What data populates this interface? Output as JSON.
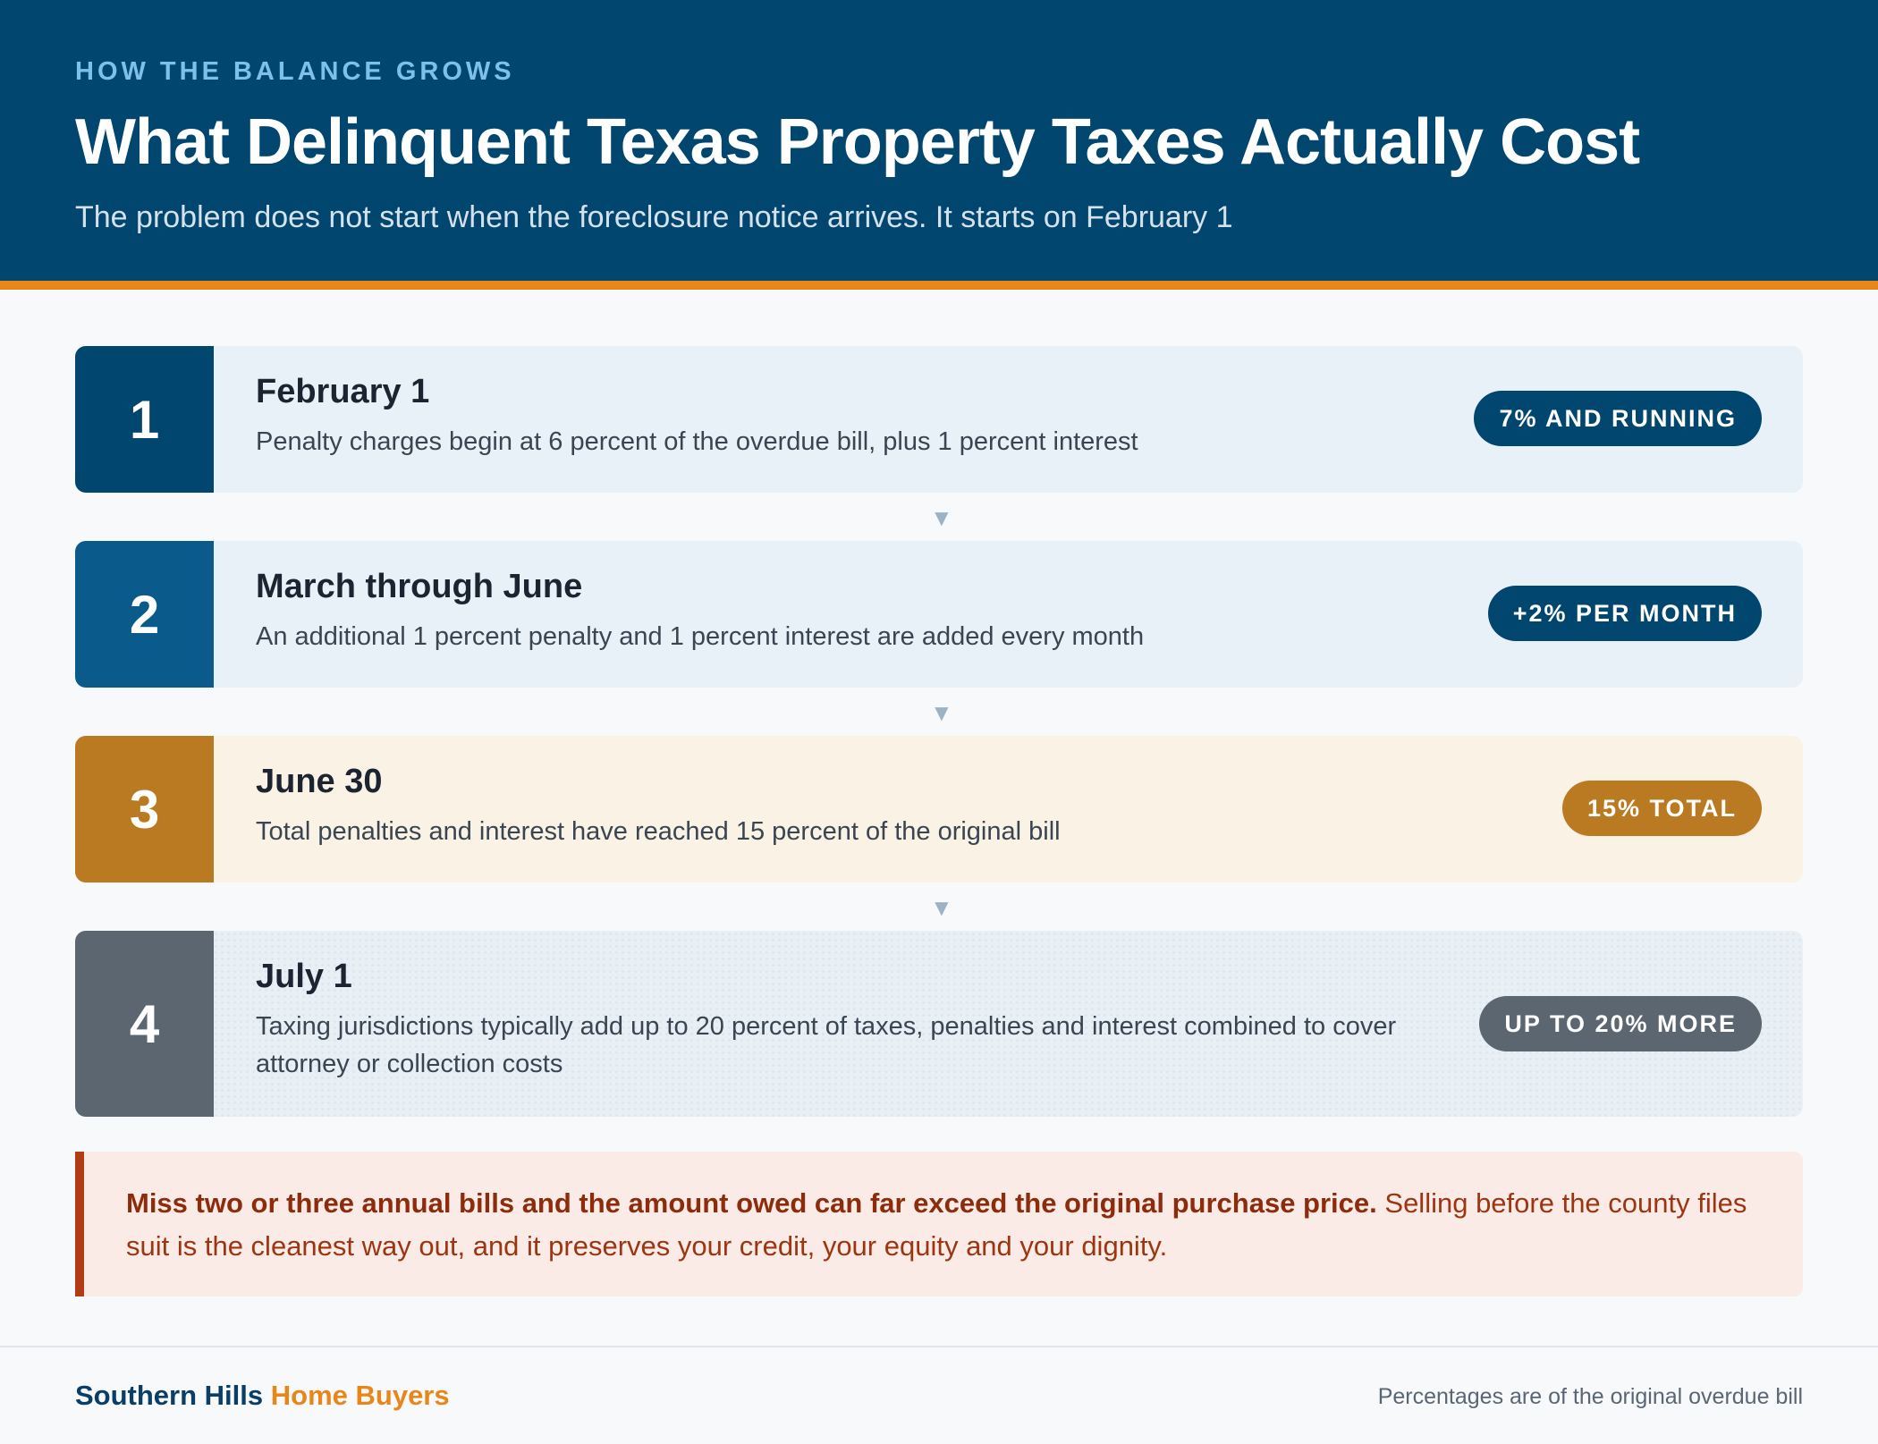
{
  "header": {
    "eyebrow": "HOW THE BALANCE GROWS",
    "title": "What Delinquent Texas Property Taxes Actually Cost",
    "subtitle": "The problem does not start when the foreclosure notice arrives. It starts on February 1"
  },
  "steps": [
    {
      "number": "1",
      "title": "February 1",
      "description": "Penalty charges begin at 6 percent of the overdue bill, plus 1 percent interest",
      "badge": "7% AND RUNNING",
      "color": "#00466e"
    },
    {
      "number": "2",
      "title": "March through June",
      "description": "An additional 1 percent penalty and 1 percent interest are added every month",
      "badge": "+2% PER MONTH",
      "color": "#0b5a8c"
    },
    {
      "number": "3",
      "title": "June 30",
      "description": "Total penalties and interest have reached 15 percent of the original bill",
      "badge": "15% TOTAL",
      "color": "#b97a22"
    },
    {
      "number": "4",
      "title": "July 1",
      "description": "Taxing jurisdictions typically add up to 20 percent of taxes, penalties and interest combined to cover attorney or collection costs",
      "badge": "UP TO 20% MORE",
      "color": "#5b6670"
    }
  ],
  "arrow_icon": "down-triangle-icon",
  "callout": {
    "strong": "Miss two or three annual bills and the amount owed can far exceed the original purchase price.",
    "rest": " Selling before the county files suit is the cleanest way out, and it preserves your credit, your equity and your dignity.",
    "accent_color": "#b23c15"
  },
  "footer": {
    "brand_part1": "Southern Hills",
    "brand_part2": "Home Buyers",
    "note": "Percentages are of the original overdue bill"
  }
}
